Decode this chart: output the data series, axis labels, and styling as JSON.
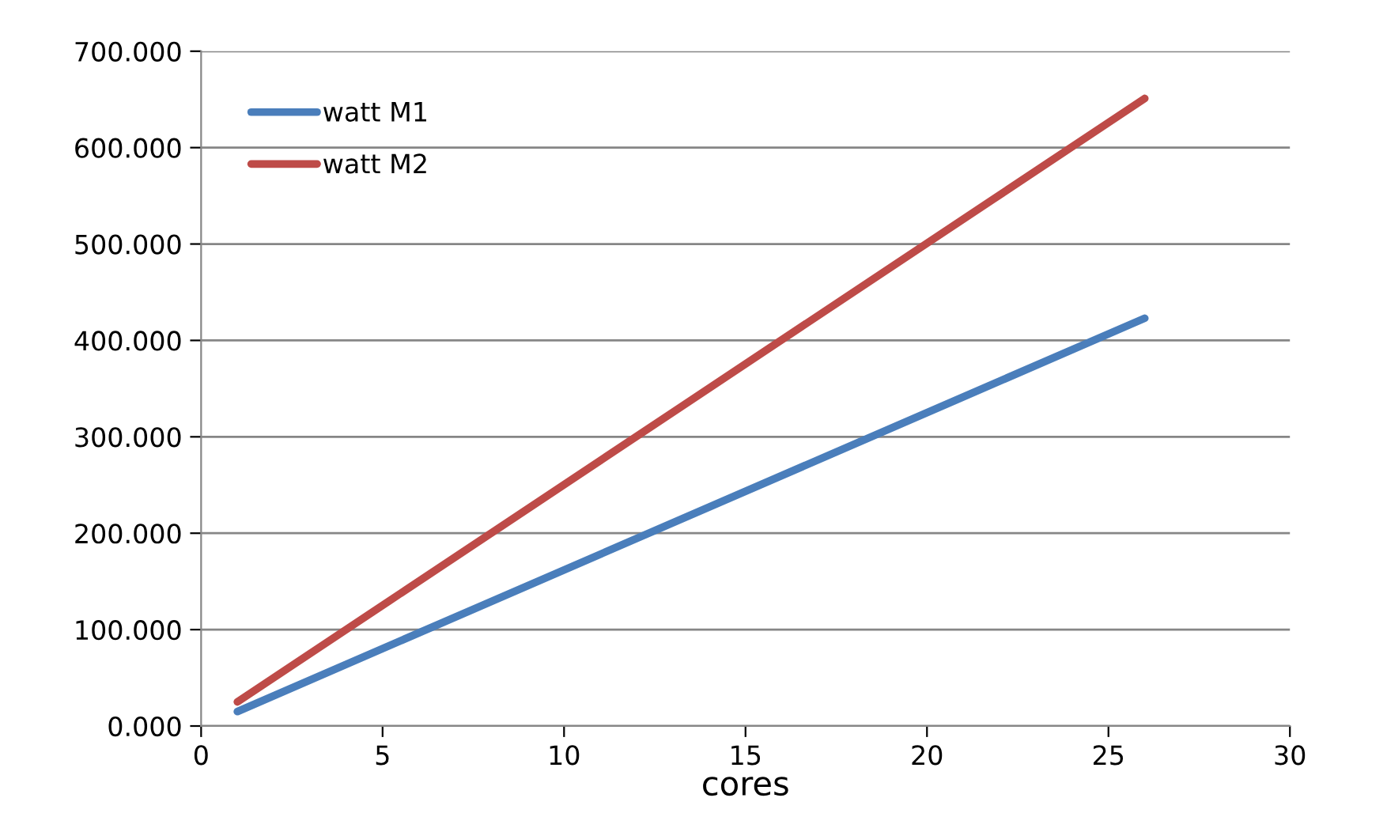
{
  "chart_data": {
    "type": "line",
    "xlabel": "cores",
    "x": [
      1,
      26
    ],
    "series": [
      {
        "name": "watt M1",
        "color": "#4a7ebb",
        "values": [
          15,
          423
        ]
      },
      {
        "name": "watt M2",
        "color": "#be4b48",
        "values": [
          25,
          651
        ]
      }
    ],
    "xlim": [
      0,
      30
    ],
    "xticks": [
      0,
      5,
      10,
      15,
      20,
      25,
      30
    ],
    "ylim": [
      0,
      700
    ],
    "yticks": [
      {
        "value": 0,
        "label": "0.000"
      },
      {
        "value": 100,
        "label": "100.000"
      },
      {
        "value": 200,
        "label": "200.000"
      },
      {
        "value": 300,
        "label": "300.000"
      },
      {
        "value": 400,
        "label": "400.000"
      },
      {
        "value": 500,
        "label": "500.000"
      },
      {
        "value": 600,
        "label": "600.000"
      },
      {
        "value": 700,
        "label": "700.000"
      }
    ],
    "grid": "y",
    "legend": "top left",
    "marker": "none",
    "line_style": "solid"
  }
}
